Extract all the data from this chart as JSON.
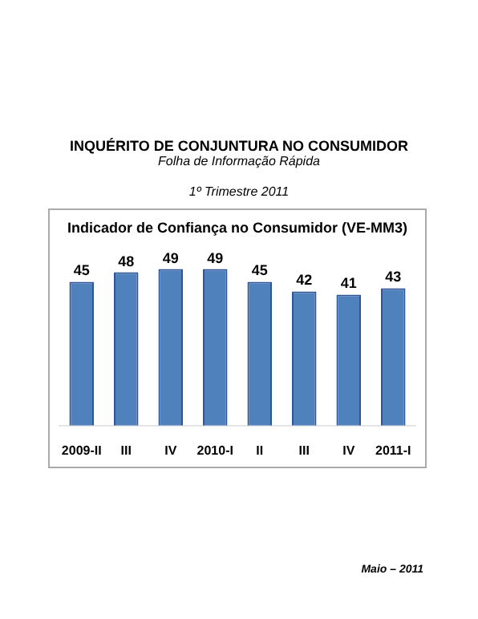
{
  "chart_data": {
    "type": "bar",
    "title": "Indicador de Confiança no Consumidor (VE-MM3)",
    "annotations": [
      "INQUÉRITO DE CONJUNTURA NO CONSUMIDOR",
      "Folha de Informação Rápida",
      "1º Trimestre 2011",
      "Maio – 2011"
    ],
    "categories": [
      "2009-II",
      "III",
      "IV",
      "2010-I",
      "II",
      "III",
      "IV",
      "2011-I"
    ],
    "values": [
      45,
      48,
      49,
      49,
      45,
      42,
      41,
      43
    ],
    "color": "#4f81bd",
    "data_labels": true,
    "grid": false,
    "legend": false
  }
}
